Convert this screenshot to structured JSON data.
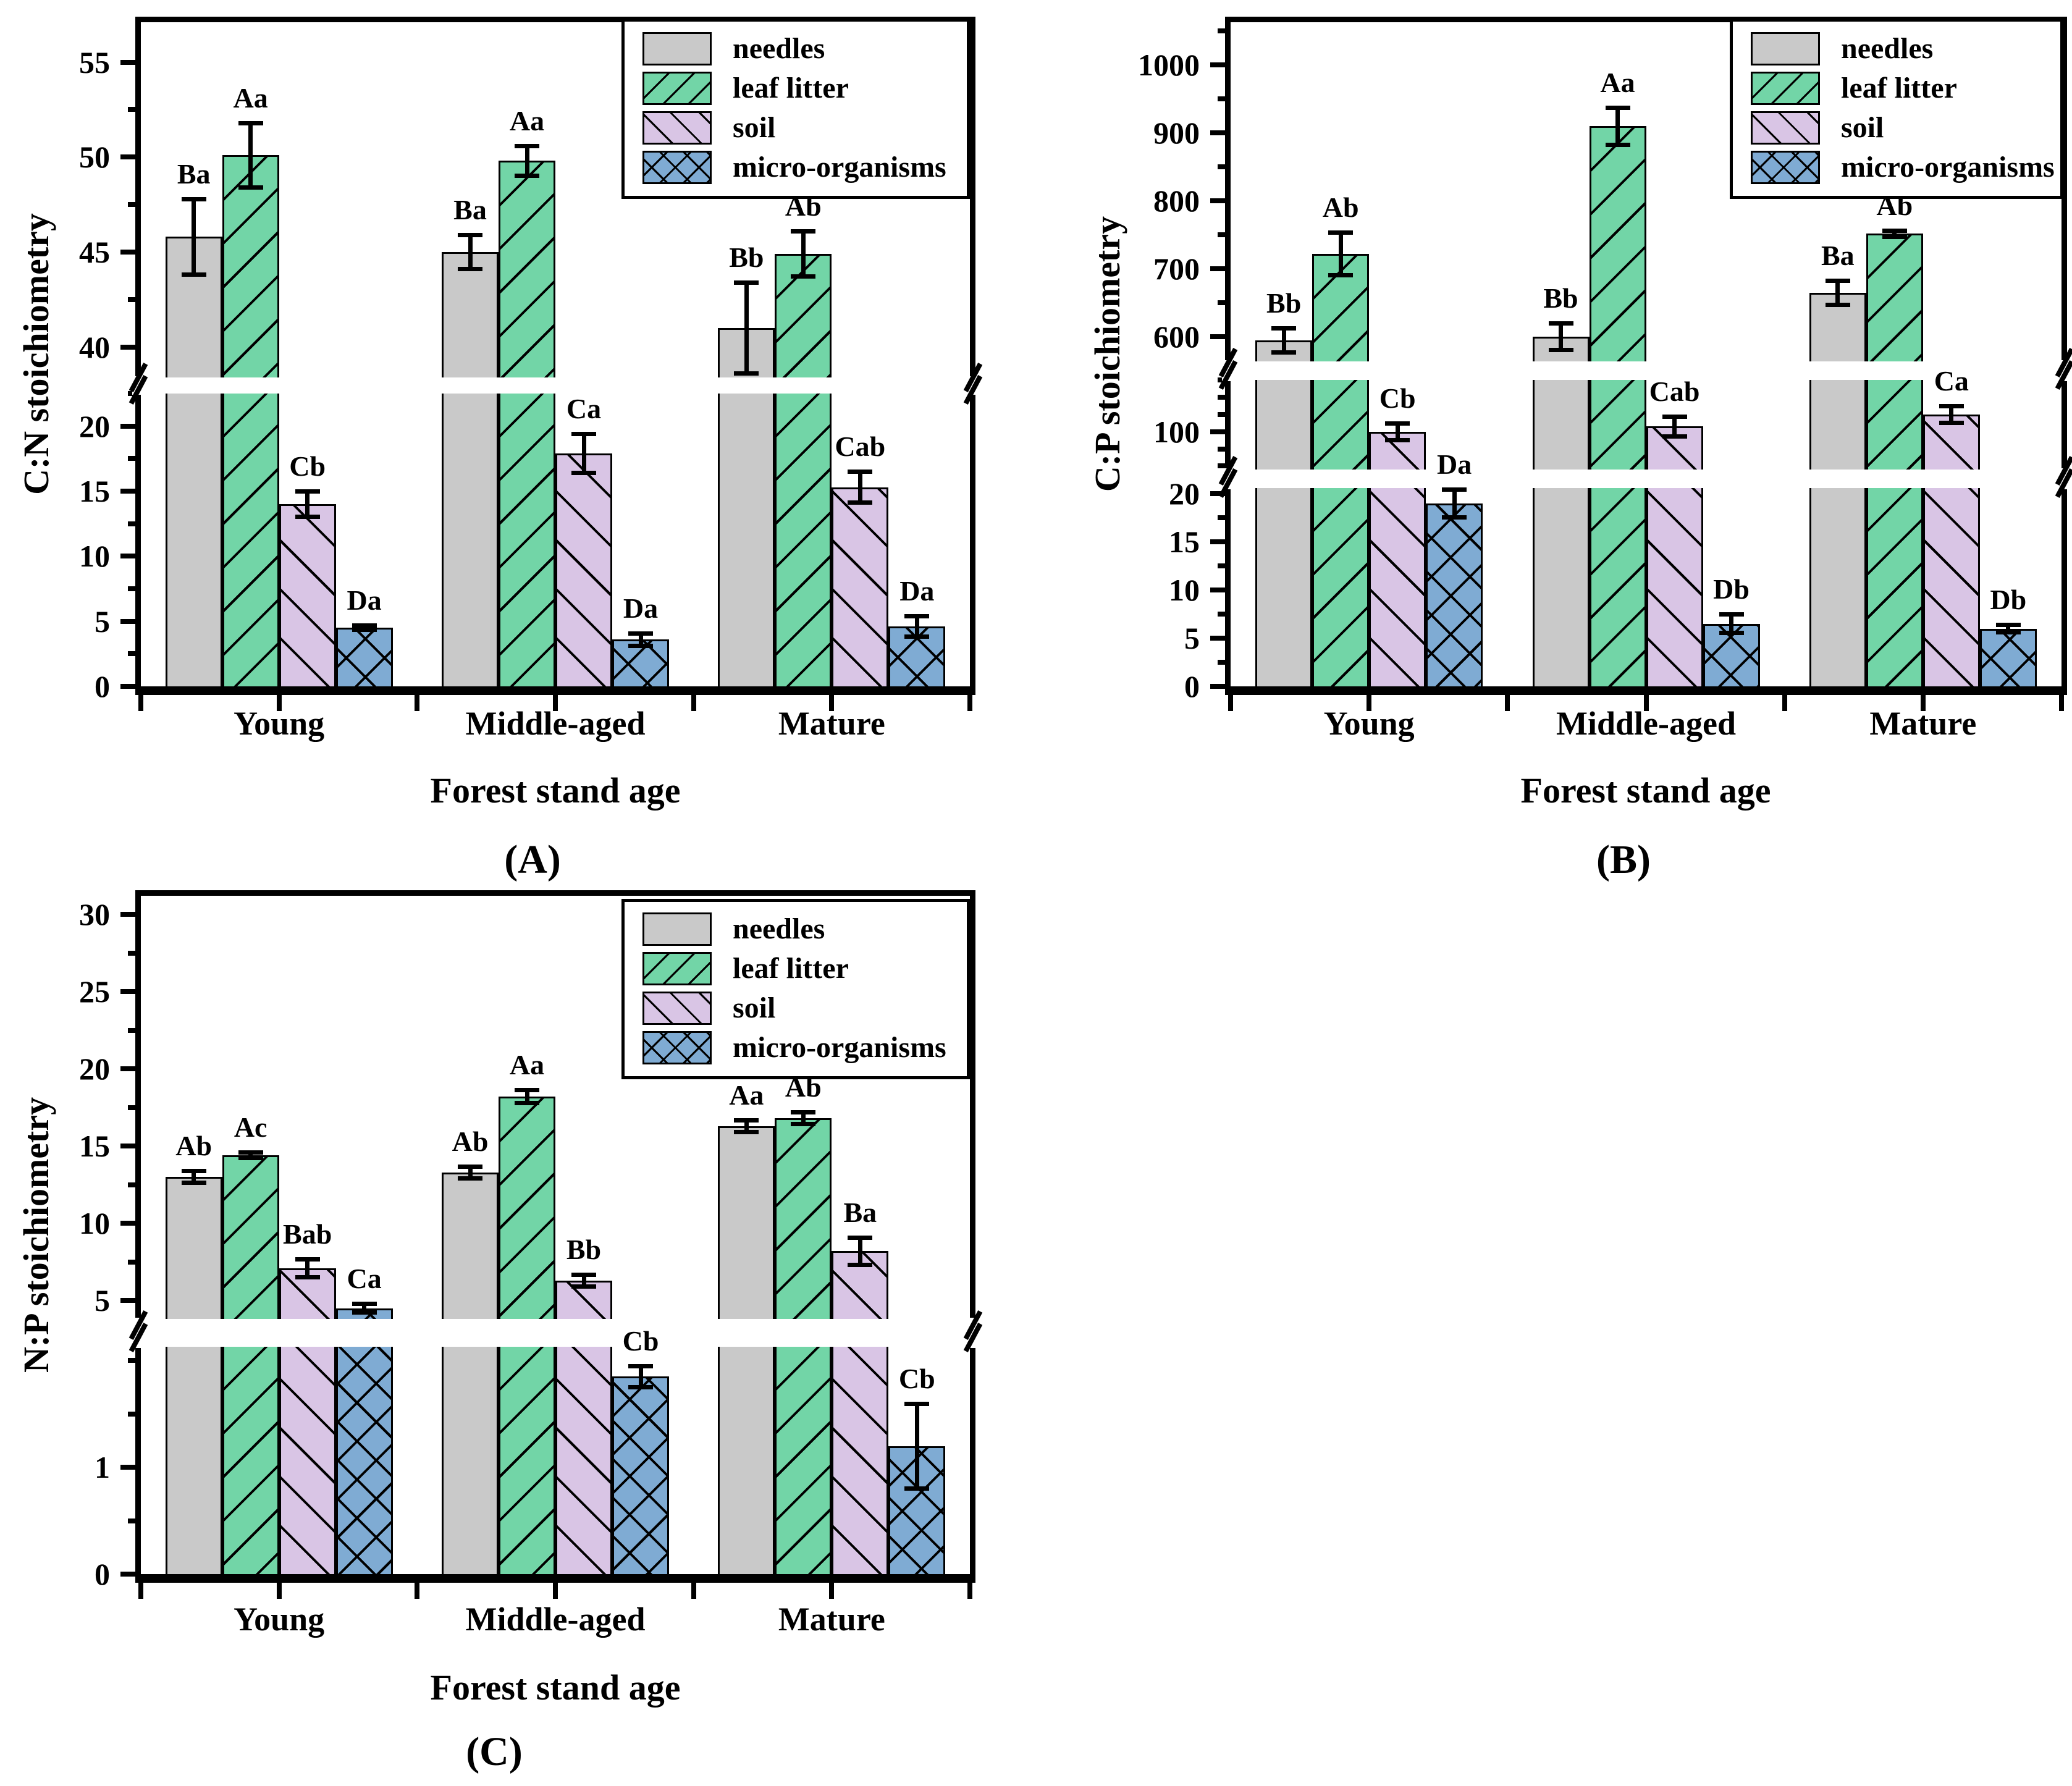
{
  "figure": {
    "background_color": "#ffffff",
    "text_color": "#000000"
  },
  "colors": {
    "needles": "#c9c9c9",
    "leaf_litter": "#72d5a7",
    "soil": "#d9c5e5",
    "micro_organisms": "#7fabd3",
    "outline": "#000000"
  },
  "chart_data": [
    {
      "id": "A",
      "type": "bar",
      "panel_label": "(A)",
      "ylabel": "C:N stoichiometry",
      "xlabel": "Forest stand age",
      "categories": [
        "Young",
        "Middle-aged",
        "Mature"
      ],
      "legend_items": [
        "needles",
        "leaf litter",
        "soil",
        "micro-organisms"
      ],
      "legend_position": "top-right",
      "grid": false,
      "axis_break": true,
      "axis": {
        "segments": [
          {
            "range": [
              38.4,
              57.1
            ],
            "ticks": [
              40,
              45,
              50,
              55
            ],
            "minor_step": 2.5
          },
          {
            "range": [
              0,
              22.5
            ],
            "ticks": [
              0,
              5,
              10,
              15,
              20
            ],
            "minor_step": 2.5
          }
        ]
      },
      "series": [
        {
          "name": "needles",
          "values": [
            45.8,
            45.0,
            41.0
          ],
          "errors": [
            2.0,
            0.9,
            2.4
          ],
          "sig_labels": [
            "Ba",
            "Ba",
            "Bb"
          ]
        },
        {
          "name": "leaf litter",
          "values": [
            50.1,
            49.8,
            44.9
          ],
          "errors": [
            1.7,
            0.8,
            1.2
          ],
          "sig_labels": [
            "Aa",
            "Aa",
            "Ab"
          ]
        },
        {
          "name": "soil",
          "values": [
            14.0,
            17.9,
            15.3
          ],
          "errors": [
            1.0,
            1.5,
            1.2
          ],
          "sig_labels": [
            "Cb",
            "Ca",
            "Cab"
          ]
        },
        {
          "name": "micro-organisms",
          "values": [
            4.5,
            3.6,
            4.6
          ],
          "errors": [
            0.2,
            0.5,
            0.8
          ],
          "sig_labels": [
            "Da",
            "Da",
            "Da"
          ]
        }
      ]
    },
    {
      "id": "B",
      "type": "bar",
      "panel_label": "(B)",
      "ylabel": "C:P stoichiometry",
      "xlabel": "Forest stand age",
      "categories": [
        "Young",
        "Middle-aged",
        "Mature"
      ],
      "legend_items": [
        "needles",
        "leaf litter",
        "soil",
        "micro-organisms"
      ],
      "legend_position": "top-right",
      "grid": false,
      "axis_break": true,
      "axis": {
        "segments": [
          {
            "range": [
              564,
              1063
            ],
            "ticks": [
              600,
              700,
              800,
              900,
              1000
            ],
            "minor_step": 50
          },
          {
            "range": [
              78,
              130
            ],
            "ticks": [
              100
            ],
            "minor_step": 10
          },
          {
            "range": [
              0,
              20.6
            ],
            "ticks": [
              0,
              5,
              10,
              15,
              20
            ],
            "minor_step": 2.5
          }
        ]
      },
      "series": [
        {
          "name": "needles",
          "values": [
            595,
            600,
            665
          ],
          "errors": [
            18,
            20,
            18
          ],
          "sig_labels": [
            "Bb",
            "Bb",
            "Ba"
          ]
        },
        {
          "name": "leaf litter",
          "values": [
            722,
            910,
            752
          ],
          "errors": [
            32,
            28,
            5
          ],
          "sig_labels": [
            "Ab",
            "Aa",
            "Ab"
          ]
        },
        {
          "name": "soil",
          "values": [
            100,
            103,
            110
          ],
          "errors": [
            5,
            6,
            5
          ],
          "sig_labels": [
            "Cb",
            "Cab",
            "Ca"
          ]
        },
        {
          "name": "micro-organisms",
          "values": [
            19,
            6.5,
            6.0
          ],
          "errors": [
            1.5,
            1.0,
            0.4
          ],
          "sig_labels": [
            "Da",
            "Db",
            "Db"
          ]
        }
      ]
    },
    {
      "id": "C",
      "type": "bar",
      "panel_label": "(C)",
      "ylabel": "N:P stoichiometry",
      "xlabel": "Forest stand age",
      "categories": [
        "Young",
        "Middle-aged",
        "Mature"
      ],
      "legend_items": [
        "needles",
        "leaf litter",
        "soil",
        "micro-organisms"
      ],
      "legend_position": "top-right",
      "grid": false,
      "axis_break": true,
      "axis": {
        "segments": [
          {
            "range": [
              3.8,
              31.2
            ],
            "ticks": [
              5,
              10,
              15,
              20,
              25,
              30
            ],
            "minor_step": 2.5
          },
          {
            "range": [
              0,
              2.13
            ],
            "ticks": [
              0,
              1
            ],
            "minor_step": 0.5
          }
        ]
      },
      "series": [
        {
          "name": "needles",
          "values": [
            13.0,
            13.3,
            16.3
          ],
          "errors": [
            0.4,
            0.4,
            0.4
          ],
          "sig_labels": [
            "Ab",
            "Ab",
            "Aa"
          ]
        },
        {
          "name": "leaf litter",
          "values": [
            14.4,
            18.2,
            16.8
          ],
          "errors": [
            0.2,
            0.45,
            0.4
          ],
          "sig_labels": [
            "Ac",
            "Aa",
            "Ab"
          ]
        },
        {
          "name": "soil",
          "values": [
            7.1,
            6.3,
            8.2
          ],
          "errors": [
            0.6,
            0.4,
            0.9
          ],
          "sig_labels": [
            "Bab",
            "Bb",
            "Ba"
          ]
        },
        {
          "name": "micro-organisms",
          "values": [
            4.5,
            1.85,
            1.2
          ],
          "errors": [
            0.3,
            0.1,
            0.4
          ],
          "sig_labels": [
            "Ca",
            "Cb",
            "Cb"
          ]
        }
      ]
    }
  ]
}
